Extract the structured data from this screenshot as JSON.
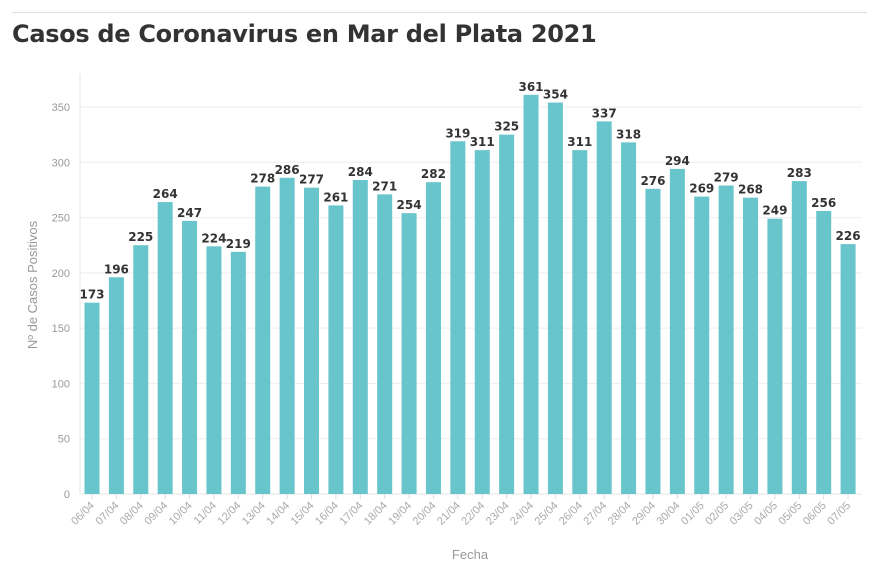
{
  "chart_data": {
    "type": "bar",
    "title": "Casos de Coronavirus en Mar del Plata 2021",
    "xlabel": "Fecha",
    "ylabel": "Nº de Casos Positivos",
    "ylim": [
      0,
      380
    ],
    "yticks": [
      0,
      50,
      100,
      150,
      200,
      250,
      300,
      350
    ],
    "grid": true,
    "color": "#67c5cb",
    "categories": [
      "06/04",
      "07/04",
      "08/04",
      "09/04",
      "10/04",
      "11/04",
      "12/04",
      "13/04",
      "14/04",
      "15/04",
      "16/04",
      "17/04",
      "18/04",
      "19/04",
      "20/04",
      "21/04",
      "22/04",
      "23/04",
      "24/04",
      "25/04",
      "26/04",
      "27/04",
      "28/04",
      "29/04",
      "30/04",
      "01/05",
      "02/05",
      "03/05",
      "04/05",
      "05/05",
      "06/05",
      "07/05"
    ],
    "values": [
      173,
      196,
      225,
      264,
      247,
      224,
      219,
      278,
      286,
      277,
      261,
      284,
      271,
      254,
      282,
      319,
      311,
      325,
      361,
      354,
      311,
      337,
      318,
      276,
      294,
      269,
      279,
      268,
      249,
      283,
      256,
      226
    ]
  }
}
